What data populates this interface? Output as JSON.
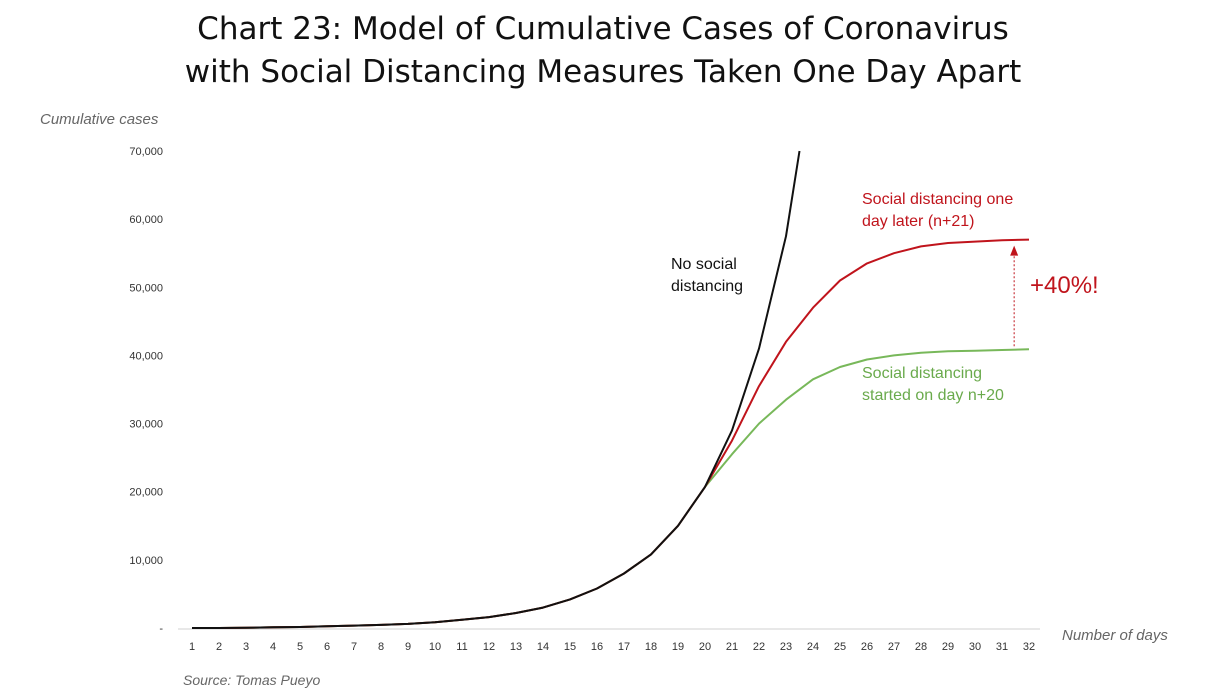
{
  "title_line1": "Chart 23: Model of Cumulative Cases of Coronavirus",
  "title_line2": "with Social Distancing Measures Taken One Day Apart",
  "source": "Source: Tomas Pueyo",
  "annotations": {
    "no_social": [
      "No social",
      "distancing"
    ],
    "one_day_later": [
      "Social distancing one",
      "day later (n+21)"
    ],
    "started": [
      "Social distancing",
      "started on day n+20"
    ],
    "increase": "+40%!"
  },
  "colors": {
    "black": "#111111",
    "red": "#c0141c",
    "green": "#78b85a"
  },
  "chart_data": {
    "type": "line",
    "xlabel": "Number of days",
    "ylabel": "Cumulative cases",
    "x": [
      1,
      2,
      3,
      4,
      5,
      6,
      7,
      8,
      9,
      10,
      11,
      12,
      13,
      14,
      15,
      16,
      17,
      18,
      19,
      20,
      21,
      22,
      23,
      24,
      25,
      26,
      27,
      28,
      29,
      30,
      31,
      32
    ],
    "ylim": [
      0,
      70000
    ],
    "yticks": [
      "-",
      "10,000",
      "20,000",
      "30,000",
      "40,000",
      "50,000",
      "60,000",
      "70,000"
    ],
    "series": [
      {
        "name": "",
        "color": "#111111",
        "values": [
          0,
          0,
          50,
          100,
          150,
          250,
          350,
          450,
          600,
          850,
          1200,
          1600,
          2200,
          3000,
          4200,
          5800,
          8000,
          10800,
          15000,
          20700,
          29000,
          41000,
          57500,
          null,
          null,
          null,
          null,
          null,
          null,
          null,
          null,
          null
        ],
        "extends_to": {
          "x": 23.5,
          "y": 70000
        }
      },
      {
        "name": "",
        "color": "#c0141c",
        "values": [
          0,
          0,
          50,
          100,
          150,
          250,
          350,
          450,
          600,
          850,
          1200,
          1600,
          2200,
          3000,
          4200,
          5800,
          8000,
          10800,
          15000,
          20700,
          27500,
          35500,
          42000,
          47000,
          51000,
          53500,
          55000,
          56000,
          56500,
          56700,
          56900,
          57000
        ]
      },
      {
        "name": "",
        "color": "#78b85a",
        "values": [
          0,
          0,
          50,
          100,
          150,
          250,
          350,
          450,
          600,
          850,
          1200,
          1600,
          2200,
          3000,
          4200,
          5800,
          8000,
          10800,
          15000,
          20700,
          25500,
          30000,
          33500,
          36500,
          38300,
          39400,
          40000,
          40400,
          40600,
          40700,
          40800,
          40900
        ]
      }
    ]
  }
}
